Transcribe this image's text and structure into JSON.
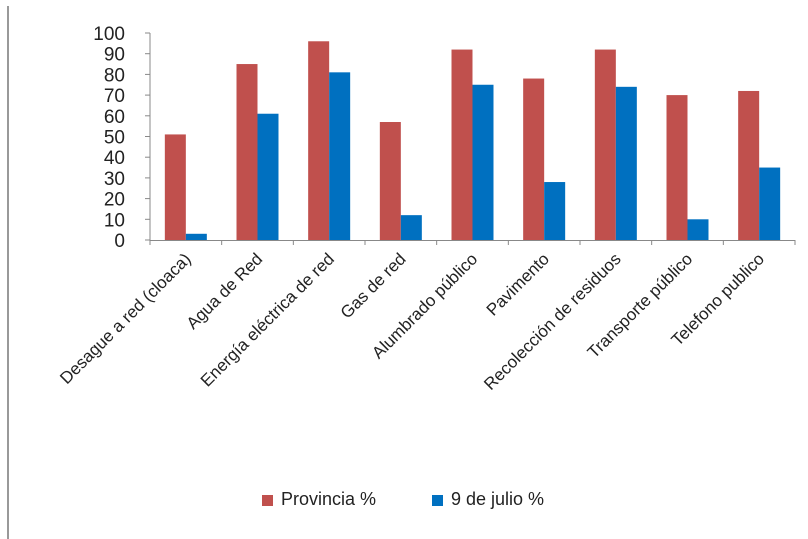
{
  "chart_data": {
    "type": "bar",
    "categories": [
      "Desague a red (cloaca)",
      "Agua de Red",
      "Energía eléctrica de red",
      "Gas de red",
      "Alumbrado público",
      "Pavimento",
      "Recolección de residuos",
      "Transporte público",
      "Telefono publico"
    ],
    "series": [
      {
        "name": "Provincia %",
        "color": "#C0504D",
        "values": [
          51,
          85,
          96,
          57,
          92,
          78,
          92,
          70,
          72
        ]
      },
      {
        "name": "9 de julio %",
        "color": "#0070C0",
        "values": [
          3,
          61,
          81,
          12,
          75,
          28,
          74,
          10,
          35
        ]
      }
    ],
    "ylim": [
      0,
      100
    ],
    "yticks": [
      0,
      10,
      20,
      30,
      40,
      50,
      60,
      70,
      80,
      90,
      100
    ],
    "grid": false,
    "legend_position": "bottom"
  }
}
